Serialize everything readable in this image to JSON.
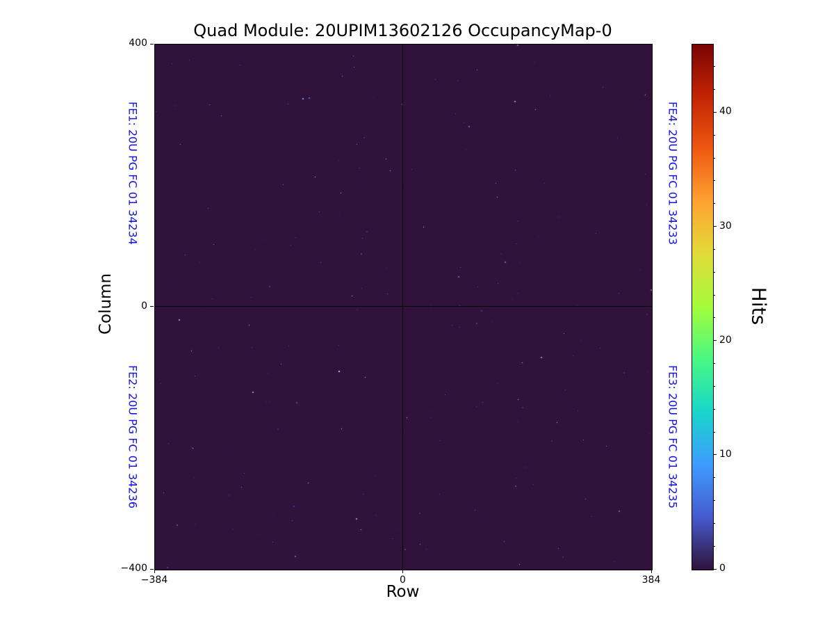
{
  "figure": {
    "title": "Quad Module: 20UPIM13602126 OccupancyMap-0"
  },
  "axes": {
    "xlabel": "Row",
    "ylabel": "Column"
  },
  "fe_labels": {
    "top_left": "FE1: 20U PG FC 01 34234",
    "bottom_left": "FE2: 20U PG FC 01 34236",
    "top_right": "FE4: 20U PG FC 01 34233",
    "bottom_right": "FE3: 20U PG FC 01 34235"
  },
  "colorbar": {
    "label": "Hits",
    "tick_values": [
      0,
      10,
      20,
      30,
      40
    ],
    "minor_tick_step": 2,
    "vmin": 0,
    "vmax": 46,
    "colormap": "turbo"
  },
  "chart_data": {
    "type": "heatmap",
    "title": "Quad Module: 20UPIM13602126 OccupancyMap-0",
    "xlabel": "Row",
    "ylabel": "Column",
    "xlim": [
      -384,
      384
    ],
    "ylim": [
      -400,
      400
    ],
    "x_tick_values": [
      -384,
      0,
      384
    ],
    "x_tick_labels": [
      "−384",
      "0",
      "384"
    ],
    "y_tick_values": [
      400,
      0,
      -400
    ],
    "y_tick_labels": [
      "400",
      "0",
      "−400"
    ],
    "colorbar_label": "Hits",
    "value_range": [
      0,
      46
    ],
    "background_value": 0,
    "quadrant_divider_lines": {
      "x": 0,
      "y": 0
    },
    "sparse_hits": {
      "description": "Bulk of the occupancy map is at 0 hits (dark purple); sparse isolated noisy pixels with low hit counts are scattered uniformly across all four front-end quadrants",
      "count": 280,
      "value_range": [
        1,
        10
      ],
      "seed": 20126
    },
    "front_ends": [
      {
        "position": "top-left",
        "label": "FE1: 20U PG FC 01 34234"
      },
      {
        "position": "bottom-left",
        "label": "FE2: 20U PG FC 01 34236"
      },
      {
        "position": "top-right",
        "label": "FE4: 20U PG FC 01 34233"
      },
      {
        "position": "bottom-right",
        "label": "FE3: 20U PG FC 01 34235"
      }
    ]
  },
  "colors": {
    "background": "#ffffff",
    "heatmap_background": "#30123b",
    "fe_label_color": "#1414dc",
    "axis_color": "#000000",
    "speck_palette": [
      "#37215e",
      "#3e2f7d",
      "#45409c",
      "#4b53b8",
      "#5b6ecb",
      "#8b97dd",
      "#c3c9ef"
    ],
    "turbo_stops": [
      "#30123b",
      "#455bcd",
      "#3e9bfe",
      "#18d6cb",
      "#48f882",
      "#a4fc3b",
      "#e2dc38",
      "#fea331",
      "#ef5911",
      "#c22403",
      "#7a0403"
    ]
  }
}
